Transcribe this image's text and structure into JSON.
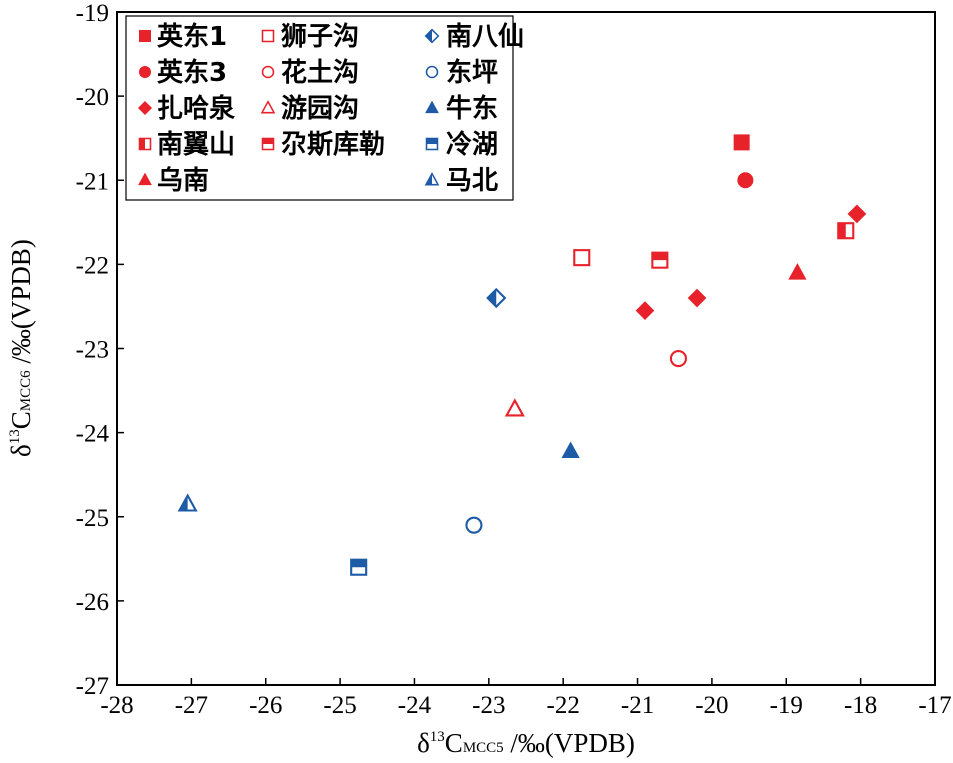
{
  "chart_data": {
    "type": "scatter",
    "xlabel": {
      "prefix": "δ",
      "sup": "13",
      "main": "C",
      "sub": "MCC5",
      "suffix": " /‰(VPDB)"
    },
    "ylabel": {
      "prefix": "δ",
      "sup": "13",
      "main": "C",
      "sub": "MCC6",
      "suffix": " /‰(VPDB)"
    },
    "xlim": [
      -28,
      -17
    ],
    "ylim": [
      -27,
      -19
    ],
    "xticks": [
      "-28",
      "-27",
      "-26",
      "-25",
      "-24",
      "-23",
      "-22",
      "-21",
      "-20",
      "-19",
      "-18",
      "-17"
    ],
    "yticks": [
      "-27",
      "-26",
      "-25",
      "-24",
      "-23",
      "-22",
      "-21",
      "-20",
      "-19"
    ],
    "grid": false,
    "legend_position": "top-left",
    "colors": {
      "red": "#e8222a",
      "blue": "#1e5ba6"
    },
    "legend_columns": 3,
    "series": [
      {
        "name": "英东1",
        "marker": "square-filled",
        "color": "#e8222a",
        "points": [
          [
            -19.6,
            -20.55
          ]
        ]
      },
      {
        "name": "英东3",
        "marker": "circle-filled",
        "color": "#e8222a",
        "points": [
          [
            -19.55,
            -21.0
          ]
        ]
      },
      {
        "name": "扎哈泉",
        "marker": "diamond-filled",
        "color": "#e8222a",
        "points": [
          [
            -18.05,
            -21.4
          ],
          [
            -20.2,
            -22.4
          ],
          [
            -20.9,
            -22.55
          ]
        ]
      },
      {
        "name": "南翼山",
        "marker": "square-half-left",
        "color": "#e8222a",
        "points": [
          [
            -18.2,
            -21.6
          ]
        ]
      },
      {
        "name": "乌南",
        "marker": "triangle-filled",
        "color": "#e8222a",
        "points": [
          [
            -18.85,
            -22.1
          ]
        ]
      },
      {
        "name": "狮子沟",
        "marker": "square-open",
        "color": "#e8222a",
        "points": [
          [
            -21.75,
            -21.92
          ]
        ]
      },
      {
        "name": "花土沟",
        "marker": "circle-open",
        "color": "#e8222a",
        "points": [
          [
            -20.45,
            -23.12
          ]
        ]
      },
      {
        "name": "游园沟",
        "marker": "triangle-open",
        "color": "#e8222a",
        "points": [
          [
            -22.65,
            -23.72
          ]
        ]
      },
      {
        "name": "尕斯库勒",
        "marker": "square-half-top",
        "color": "#e8222a",
        "points": [
          [
            -20.7,
            -21.95
          ]
        ]
      },
      {
        "name": "南八仙",
        "marker": "diamond-half-left",
        "color": "#1e5ba6",
        "points": [
          [
            -22.9,
            -22.4
          ]
        ]
      },
      {
        "name": "东坪",
        "marker": "circle-open",
        "color": "#1e5ba6",
        "points": [
          [
            -23.2,
            -25.1
          ]
        ]
      },
      {
        "name": "牛东",
        "marker": "triangle-filled",
        "color": "#1e5ba6",
        "points": [
          [
            -21.9,
            -24.22
          ]
        ]
      },
      {
        "name": "冷湖",
        "marker": "square-half-top",
        "color": "#1e5ba6",
        "points": [
          [
            -24.75,
            -25.6
          ]
        ]
      },
      {
        "name": "马北",
        "marker": "triangle-half-left",
        "color": "#1e5ba6",
        "points": [
          [
            -27.05,
            -24.85
          ]
        ]
      }
    ]
  }
}
